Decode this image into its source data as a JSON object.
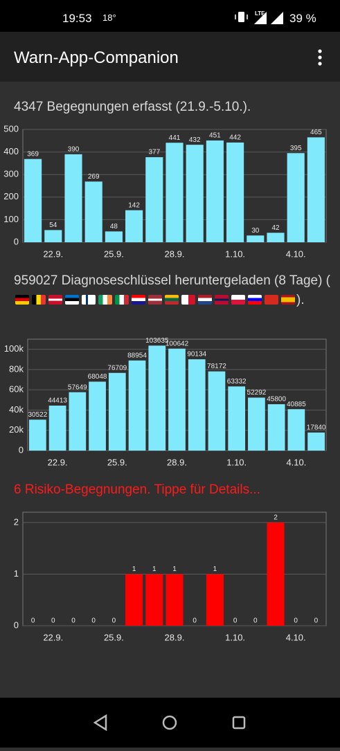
{
  "status_bar": {
    "time": "19:53",
    "temperature": "18°",
    "network": "LTE",
    "battery": "39 %"
  },
  "app_bar": {
    "title": "Warn-App-Companion"
  },
  "chart_data": [
    {
      "type": "bar",
      "title": "4347 Begegnungen erfasst (21.9.-5.10.).",
      "categories": [
        null,
        "22.9.",
        null,
        null,
        "25.9.",
        null,
        null,
        "28.9.",
        null,
        null,
        "1.10.",
        null,
        null,
        "4.10.",
        null
      ],
      "values": [
        369,
        54,
        390,
        269,
        48,
        142,
        377,
        441,
        432,
        451,
        442,
        30,
        42,
        395,
        465
      ],
      "color": "#80eafc",
      "ylim": [
        0,
        500
      ],
      "yticks": [
        0,
        100,
        200,
        300,
        400,
        500
      ],
      "grid": true
    },
    {
      "type": "bar",
      "title": "959027 Diagnoseschlüssel heruntergeladen (8 Tage) (",
      "title_suffix": ").",
      "categories": [
        null,
        "22.9.",
        null,
        null,
        "25.9.",
        null,
        null,
        "28.9.",
        null,
        null,
        "1.10.",
        null,
        null,
        "4.10.",
        null
      ],
      "values": [
        30522,
        44413,
        57649,
        68048,
        76709,
        88954,
        103635,
        100642,
        90134,
        78172,
        63332,
        52292,
        45800,
        40885,
        17840
      ],
      "color": "#80eafc",
      "ylim": [
        0,
        110000
      ],
      "yticks": [
        0,
        {
          "value": 20000,
          "label": "20k"
        },
        {
          "value": 40000,
          "label": "40k"
        },
        {
          "value": 60000,
          "label": "60k"
        },
        {
          "value": 80000,
          "label": "80k"
        },
        {
          "value": 100000,
          "label": "100k"
        }
      ],
      "grid": true
    },
    {
      "type": "bar",
      "title": "6 Risiko-Begegnungen. Tippe für Details...",
      "categories": [
        null,
        "22.9.",
        null,
        null,
        "25.9.",
        null,
        null,
        "28.9.",
        null,
        null,
        "1.10.",
        null,
        null,
        "4.10.",
        null
      ],
      "values": [
        0,
        0,
        0,
        0,
        0,
        1,
        1,
        1,
        0,
        1,
        0,
        0,
        2,
        0,
        0
      ],
      "color": "#ff0000",
      "ylim": [
        0,
        2.2
      ],
      "yticks": [
        0,
        1,
        2
      ],
      "grid": true
    }
  ]
}
